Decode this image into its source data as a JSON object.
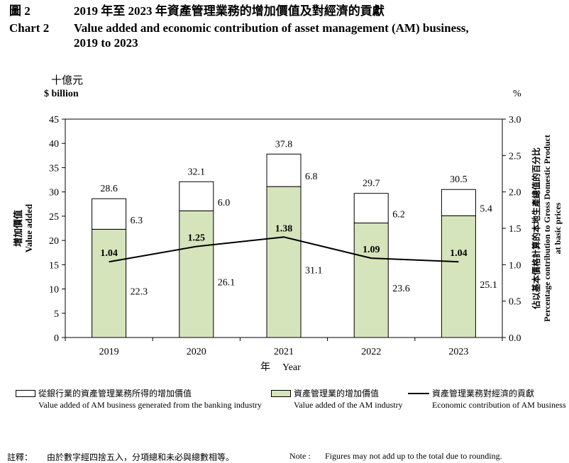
{
  "header": {
    "num_zh": "圖 2",
    "title_zh": "2019 年至 2023 年資產管理業務的增加價值及對經濟的貢獻",
    "num_en": "Chart 2",
    "title_en_line1": "Value added and economic contribution of asset management (AM) business,",
    "title_en_line2": "2019 to 2023"
  },
  "chart_data": {
    "type": "bar",
    "stacked": true,
    "categories": [
      "2019",
      "2020",
      "2021",
      "2022",
      "2023"
    ],
    "series": [
      {
        "name": "資產管理業的增加價值 / Value added of the AM industry",
        "axis": "left",
        "values": [
          22.3,
          26.1,
          31.1,
          23.6,
          25.1
        ]
      },
      {
        "name": "從銀行業的資產管理業務所得的增加價值 / Value added of AM business generated from the banking industry",
        "axis": "left",
        "values": [
          6.3,
          6.0,
          6.8,
          6.2,
          5.4
        ]
      },
      {
        "name": "資產管理業務對經濟的貢獻 / Economic contribution of AM business",
        "type": "line",
        "axis": "right",
        "values": [
          1.04,
          1.25,
          1.38,
          1.09,
          1.04
        ]
      }
    ],
    "totals": [
      28.6,
      32.1,
      37.8,
      29.7,
      30.5
    ],
    "ylim": [
      0,
      45
    ],
    "y_ticks": [
      0,
      5,
      10,
      15,
      20,
      25,
      30,
      35,
      40,
      45
    ],
    "y2lim": [
      0,
      3
    ],
    "y2_ticks": [
      "0.0",
      "0.5",
      "1.0",
      "1.5",
      "2.0",
      "2.5",
      "3.0"
    ],
    "total_labels": [
      "28.6",
      "32.1",
      "37.8",
      "29.7",
      "30.5"
    ],
    "bank_labels": [
      "6.3",
      "6.0",
      "6.8",
      "6.2",
      "5.4"
    ],
    "am_labels": [
      "22.3",
      "26.1",
      "31.1",
      "23.6",
      "25.1"
    ],
    "line_labels": [
      "1.04",
      "1.25",
      "1.38",
      "1.09",
      "1.04"
    ],
    "ylabel_unit_zh": "十億元",
    "ylabel_unit_en": "$ billion",
    "ylabel_zh": "增加價值",
    "ylabel_en": "Value added",
    "y2label_unit": "%",
    "y2label_zh": "佔以基本價格計算的本地生產總值的百分比",
    "y2label_en1": "Percentage contribution to Gross Domestic Product",
    "y2label_en2": "at basic prices",
    "xlabel_zh": "年",
    "xlabel_en": "Year"
  },
  "colors": {
    "am_fill": "#d6e4bc",
    "bank_fill": "#ffffff",
    "stroke": "#000000"
  },
  "legend": {
    "bank_zh": "從銀行業的資產管理業務所得的增加價值",
    "bank_en": "Value added of AM business generated from the banking industry",
    "am_zh": "資產管理業的增加價值",
    "am_en": "Value added of the AM industry",
    "line_zh": "資產管理業務對經濟的貢獻",
    "line_en": "Economic contribution of AM business"
  },
  "notes": {
    "label_zh": "註釋：",
    "text_zh": "由於數字經四捨五入，分項總和未必與總數相等。",
    "label_en": "Note :",
    "text_en": "Figures may not add up to the total due to rounding."
  }
}
